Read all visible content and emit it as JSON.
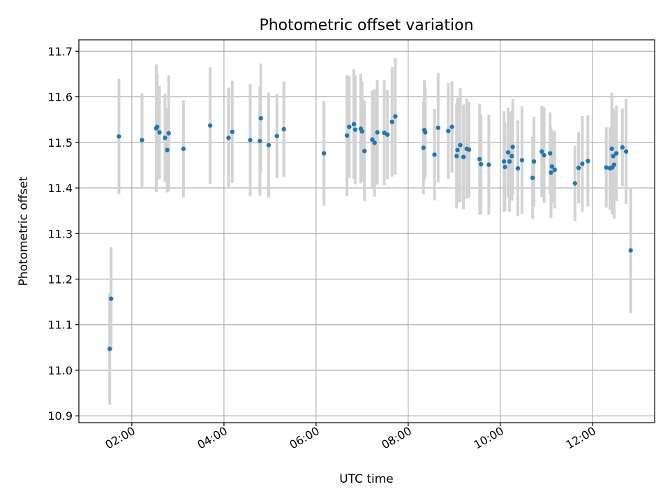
{
  "chart_data": {
    "type": "scatter",
    "title": "Photometric offset variation",
    "xlabel": "UTC time",
    "ylabel": "Photometric offset",
    "xlim_hours": [
      0.85,
      13.35
    ],
    "ylim": [
      10.885,
      11.725
    ],
    "xticks": [
      {
        "value": 2,
        "label": "02:00"
      },
      {
        "value": 4,
        "label": "04:00"
      },
      {
        "value": 6,
        "label": "06:00"
      },
      {
        "value": 8,
        "label": "08:00"
      },
      {
        "value": 10,
        "label": "10:00"
      },
      {
        "value": 12,
        "label": "12:00"
      }
    ],
    "yticks": [
      {
        "value": 10.9,
        "label": "10.9"
      },
      {
        "value": 11.0,
        "label": "11.0"
      },
      {
        "value": 11.1,
        "label": "11.1"
      },
      {
        "value": 11.2,
        "label": "11.2"
      },
      {
        "value": 11.3,
        "label": "11.3"
      },
      {
        "value": 11.4,
        "label": "11.4"
      },
      {
        "value": 11.5,
        "label": "11.5"
      },
      {
        "value": 11.6,
        "label": "11.6"
      },
      {
        "value": 11.7,
        "label": "11.7"
      }
    ],
    "grid": true,
    "series": [
      {
        "name": "Photometric offset",
        "points": [
          [
            1.52,
            11.047,
            0.123
          ],
          [
            1.55,
            11.157,
            0.113
          ],
          [
            1.72,
            11.513,
            0.127
          ],
          [
            2.22,
            11.505,
            0.103
          ],
          [
            2.53,
            11.531,
            0.14
          ],
          [
            2.55,
            11.534,
            0.118
          ],
          [
            2.6,
            11.522,
            0.102
          ],
          [
            2.72,
            11.51,
            0.097
          ],
          [
            2.77,
            11.483,
            0.093
          ],
          [
            2.8,
            11.52,
            0.127
          ],
          [
            3.12,
            11.486,
            0.107
          ],
          [
            3.7,
            11.537,
            0.128
          ],
          [
            4.1,
            11.51,
            0.11
          ],
          [
            4.18,
            11.523,
            0.112
          ],
          [
            4.57,
            11.505,
            0.123
          ],
          [
            4.78,
            11.503,
            0.12
          ],
          [
            4.8,
            11.553,
            0.12
          ],
          [
            4.97,
            11.494,
            0.115
          ],
          [
            5.15,
            11.514,
            0.092
          ],
          [
            5.3,
            11.529,
            0.105
          ],
          [
            6.17,
            11.476,
            0.115
          ],
          [
            6.67,
            11.515,
            0.133
          ],
          [
            6.72,
            11.534,
            0.112
          ],
          [
            6.82,
            11.54,
            0.12
          ],
          [
            6.85,
            11.528,
            0.12
          ],
          [
            6.97,
            11.53,
            0.12
          ],
          [
            7.0,
            11.524,
            0.11
          ],
          [
            7.05,
            11.481,
            0.11
          ],
          [
            7.22,
            11.506,
            0.108
          ],
          [
            7.27,
            11.499,
            0.118
          ],
          [
            7.33,
            11.522,
            0.115
          ],
          [
            7.48,
            11.521,
            0.115
          ],
          [
            7.55,
            11.517,
            0.098
          ],
          [
            7.65,
            11.545,
            0.12
          ],
          [
            7.72,
            11.557,
            0.128
          ],
          [
            8.33,
            11.488,
            0.102
          ],
          [
            8.35,
            11.527,
            0.11
          ],
          [
            8.37,
            11.522,
            0.1
          ],
          [
            8.57,
            11.473,
            0.1
          ],
          [
            8.65,
            11.532,
            0.12
          ],
          [
            8.87,
            11.525,
            0.105
          ],
          [
            8.95,
            11.534,
            0.1
          ],
          [
            9.05,
            11.47,
            0.115
          ],
          [
            9.07,
            11.483,
            0.115
          ],
          [
            9.13,
            11.494,
            0.125
          ],
          [
            9.2,
            11.468,
            0.115
          ],
          [
            9.27,
            11.486,
            0.11
          ],
          [
            9.32,
            11.484,
            0.105
          ],
          [
            9.55,
            11.463,
            0.122
          ],
          [
            9.58,
            11.452,
            0.11
          ],
          [
            9.75,
            11.451,
            0.11
          ],
          [
            10.08,
            11.458,
            0.11
          ],
          [
            10.1,
            11.446,
            0.097
          ],
          [
            10.17,
            11.478,
            0.098
          ],
          [
            10.2,
            11.458,
            0.11
          ],
          [
            10.25,
            11.47,
            0.098
          ],
          [
            10.27,
            11.49,
            0.105
          ],
          [
            10.38,
            11.443,
            0.105
          ],
          [
            10.47,
            11.461,
            0.118
          ],
          [
            10.7,
            11.422,
            0.09
          ],
          [
            10.73,
            11.458,
            0.098
          ],
          [
            10.9,
            11.48,
            0.1
          ],
          [
            10.95,
            11.472,
            0.105
          ],
          [
            11.08,
            11.476,
            0.09
          ],
          [
            11.1,
            11.434,
            0.1
          ],
          [
            11.12,
            11.447,
            0.08
          ],
          [
            11.18,
            11.44,
            0.085
          ],
          [
            11.62,
            11.41,
            0.083
          ],
          [
            11.7,
            11.444,
            0.078
          ],
          [
            11.78,
            11.453,
            0.105
          ],
          [
            11.9,
            11.459,
            0.1
          ],
          [
            12.3,
            11.445,
            0.088
          ],
          [
            12.38,
            11.443,
            0.09
          ],
          [
            12.42,
            11.486,
            0.123
          ],
          [
            12.43,
            11.445,
            0.103
          ],
          [
            12.45,
            11.47,
            0.105
          ],
          [
            12.47,
            11.451,
            0.118
          ],
          [
            12.52,
            11.476,
            0.105
          ],
          [
            12.65,
            11.489,
            0.085
          ],
          [
            12.73,
            11.48,
            0.115
          ],
          [
            12.83,
            11.263,
            0.138
          ]
        ]
      }
    ]
  }
}
